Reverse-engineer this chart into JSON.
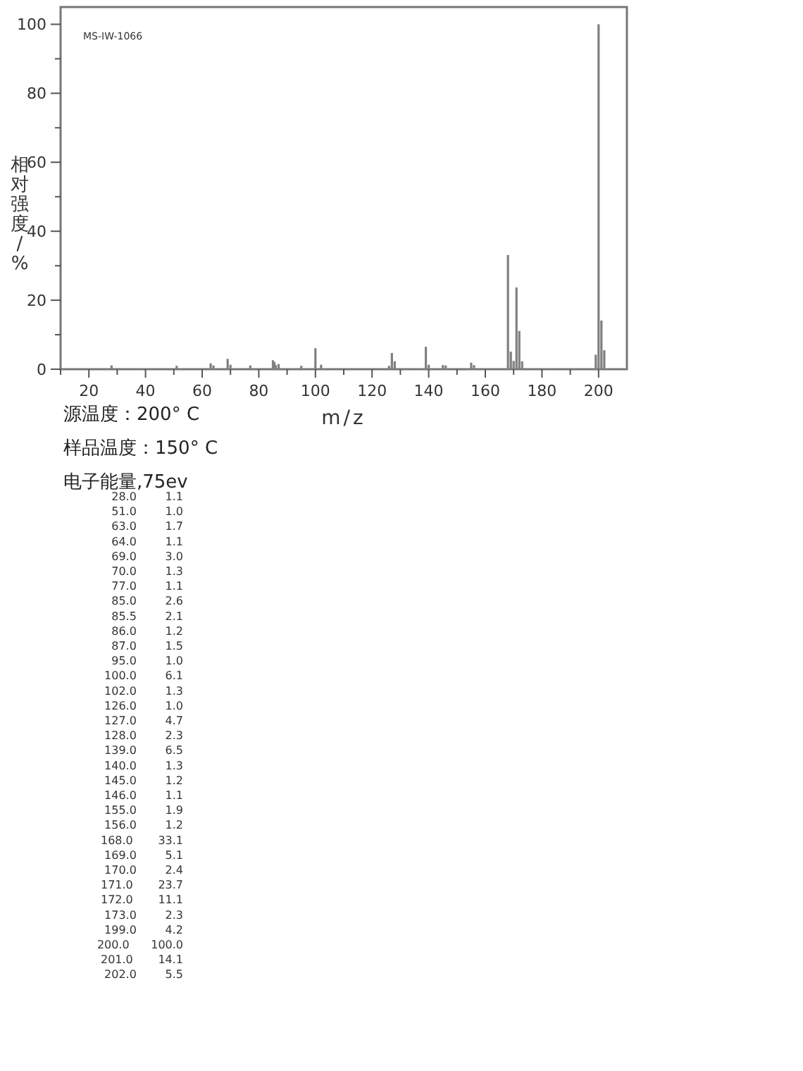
{
  "chart_data": {
    "type": "bar",
    "xlabel": "m/z",
    "ylabel": "相对强度/%",
    "x": [
      28,
      51,
      63,
      64,
      69,
      70,
      77,
      85,
      85.5,
      86,
      87,
      95,
      100,
      102,
      126,
      127,
      128,
      139,
      140,
      145,
      146,
      155,
      156,
      168,
      169,
      170,
      171,
      172,
      173,
      199,
      200,
      201,
      202
    ],
    "values": [
      1.1,
      1.0,
      1.7,
      1.1,
      3.0,
      1.3,
      1.1,
      2.6,
      2.1,
      1.2,
      1.5,
      1.0,
      6.1,
      1.3,
      1.0,
      4.7,
      2.3,
      6.5,
      1.3,
      1.2,
      1.1,
      1.9,
      1.2,
      33.1,
      5.1,
      2.4,
      23.7,
      11.1,
      2.3,
      4.2,
      100.0,
      14.1,
      5.5
    ],
    "color": "#808080",
    "xlim": [
      10,
      210
    ],
    "ylim": [
      0,
      105
    ],
    "xticks": [
      {
        "value": 10,
        "label": null
      },
      20,
      {
        "value": 30,
        "label": null
      },
      40,
      {
        "value": 50,
        "label": null
      },
      60,
      {
        "value": 70,
        "label": null
      },
      80,
      {
        "value": 90,
        "label": null
      },
      100,
      {
        "value": 110,
        "label": null
      },
      120,
      {
        "value": 130,
        "label": null
      },
      140,
      {
        "value": 150,
        "label": null
      },
      160,
      {
        "value": 170,
        "label": null
      },
      180,
      {
        "value": 190,
        "label": null
      },
      200
    ],
    "yticks": [
      0,
      {
        "value": 10,
        "label": null
      },
      20,
      {
        "value": 30,
        "label": null
      },
      40,
      {
        "value": 50,
        "label": null
      },
      60,
      {
        "value": 70,
        "label": null
      },
      80,
      {
        "value": 90,
        "label": null
      },
      100
    ],
    "annotations": [
      "MS-IW-1066",
      "源温度：200° C",
      "样品温度：150° C",
      "电子能量,75ev",
      "28.0        1.1",
      "51.0        1.0",
      "63.0        1.7",
      "64.0        1.1",
      "69.0        3.0",
      "70.0        1.3",
      "77.0        1.1",
      "85.0        2.6",
      "85.5        2.1",
      "86.0        1.2",
      "87.0        1.5",
      "95.0        1.0",
      "100.0        6.1",
      "102.0        1.3",
      "126.0        1.0",
      "127.0        4.7",
      "128.0        2.3",
      "139.0        6.5",
      "140.0        1.3",
      "145.0        1.2",
      "146.0        1.1",
      "155.0        1.9",
      "156.0        1.2",
      "168.0       33.1",
      "169.0        5.1",
      "170.0        2.4",
      "171.0       23.7",
      "172.0       11.1",
      "173.0        2.3",
      "199.0        4.2",
      "200.0      100.0",
      "201.0       14.1",
      "202.0        5.5"
    ]
  }
}
